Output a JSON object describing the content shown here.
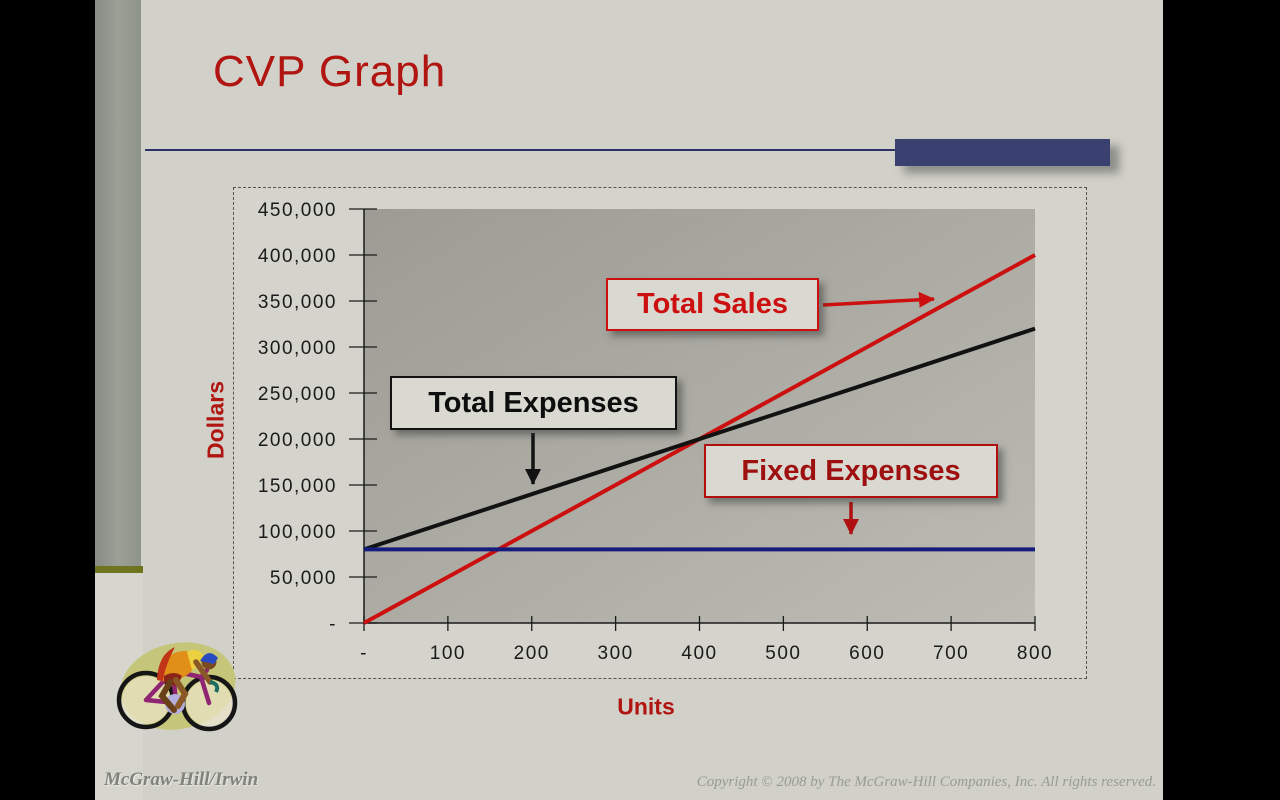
{
  "header": {
    "title": "CVP Graph"
  },
  "colors": {
    "title_text": "#b11511",
    "divider_line": "#2c3166",
    "accent_block": "#3a4070",
    "slide_background": "#d1d1c9",
    "plot_background": "#a8a8a0"
  },
  "chart_data": {
    "type": "line",
    "title": "CVP Graph",
    "xlabel": "Units",
    "ylabel": "Dollars",
    "xlim": [
      0,
      800
    ],
    "ylim": [
      0,
      450000
    ],
    "grid": false,
    "x_ticks": [
      0,
      100,
      200,
      300,
      400,
      500,
      600,
      700,
      800
    ],
    "x_tick_labels": [
      "-",
      "100",
      "200",
      "300",
      "400",
      "500",
      "600",
      "700",
      "800"
    ],
    "y_ticks": [
      0,
      50000,
      100000,
      150000,
      200000,
      250000,
      300000,
      350000,
      400000,
      450000
    ],
    "y_tick_labels": [
      "-",
      "50,000",
      "100,000",
      "150,000",
      "200,000",
      "250,000",
      "300,000",
      "350,000",
      "400,000",
      "450,000"
    ],
    "series": [
      {
        "name": "Total Sales",
        "color": "#cc1010",
        "points": [
          [
            0,
            0
          ],
          [
            800,
            400000
          ]
        ]
      },
      {
        "name": "Total Expenses",
        "color": "#121212",
        "points": [
          [
            0,
            80000
          ],
          [
            800,
            320000
          ]
        ]
      },
      {
        "name": "Fixed Expenses",
        "color": "#151c7d",
        "points": [
          [
            0,
            80000
          ],
          [
            800,
            80000
          ]
        ]
      }
    ]
  },
  "annotations": {
    "total_sales": {
      "label": "Total Sales",
      "arrow_color": "#cc1010"
    },
    "total_expenses": {
      "label": "Total Expenses",
      "arrow_color": "#121212"
    },
    "fixed_expenses": {
      "label": "Fixed Expenses",
      "arrow_color": "#b01010"
    }
  },
  "footer": {
    "left": "McGraw-Hill/Irwin",
    "right": "Copyright © 2008 by The McGraw-Hill Companies, Inc. All rights reserved."
  }
}
